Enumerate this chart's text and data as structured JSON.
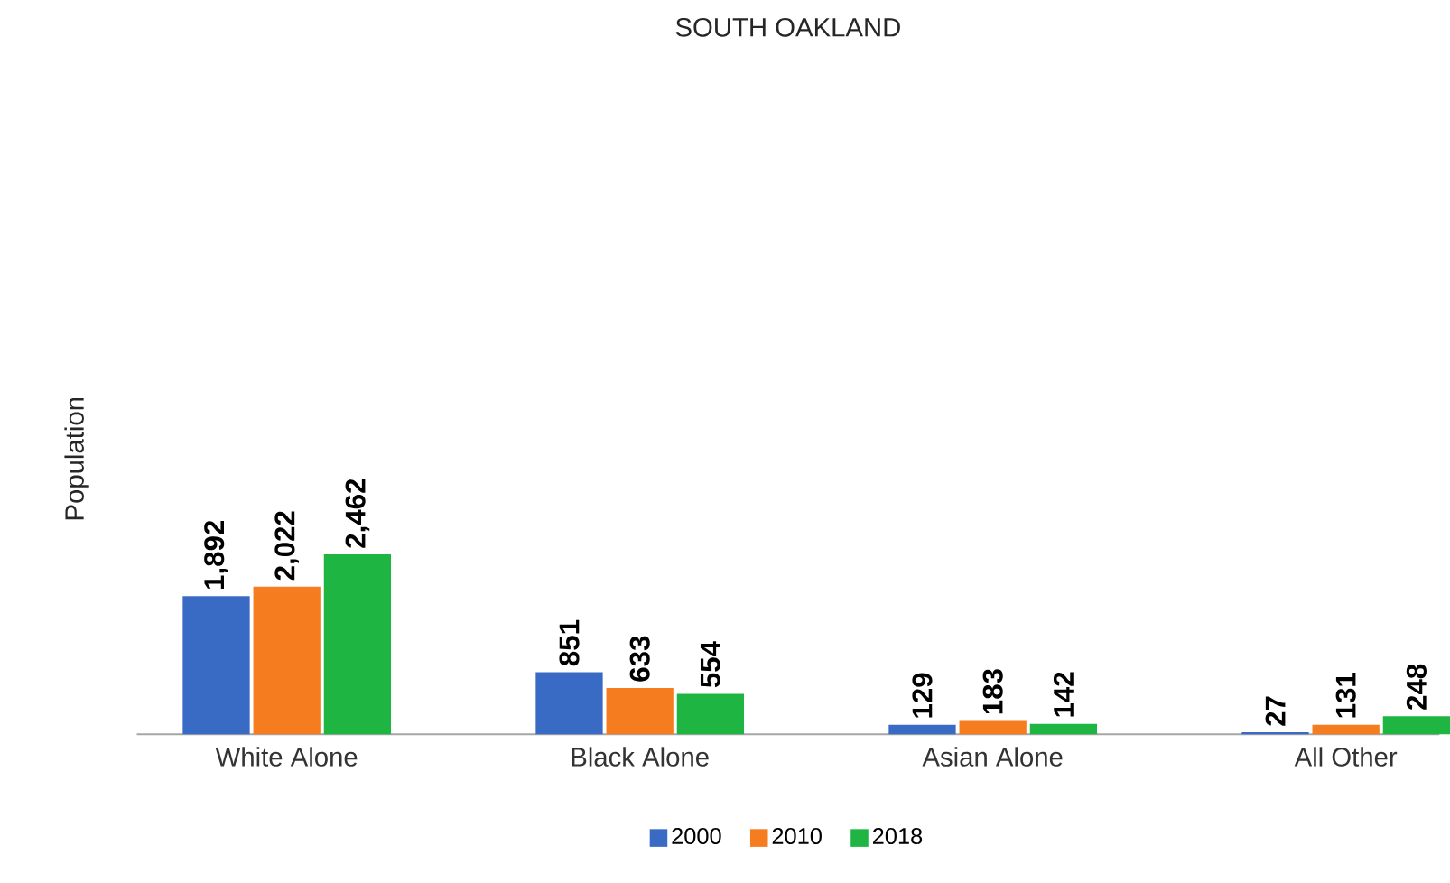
{
  "chart_data": {
    "type": "bar",
    "title": "SOUTH OAKLAND",
    "ylabel": "Population",
    "categories": [
      "White Alone",
      "Black Alone",
      "Asian Alone",
      "All Other"
    ],
    "series": [
      {
        "name": "2000",
        "color": "#3a6bc4",
        "values": [
          1892,
          851,
          129,
          27
        ],
        "value_labels": [
          "1,892",
          "851",
          "129",
          "27"
        ]
      },
      {
        "name": "2010",
        "color": "#f57c1f",
        "values": [
          2022,
          633,
          183,
          131
        ],
        "value_labels": [
          "2,022",
          "633",
          "183",
          "131"
        ]
      },
      {
        "name": "2018",
        "color": "#1fb542",
        "values": [
          2462,
          554,
          142,
          248
        ],
        "value_labels": [
          "2,462",
          "554",
          "142",
          "248"
        ]
      }
    ],
    "legend": "bottom"
  }
}
